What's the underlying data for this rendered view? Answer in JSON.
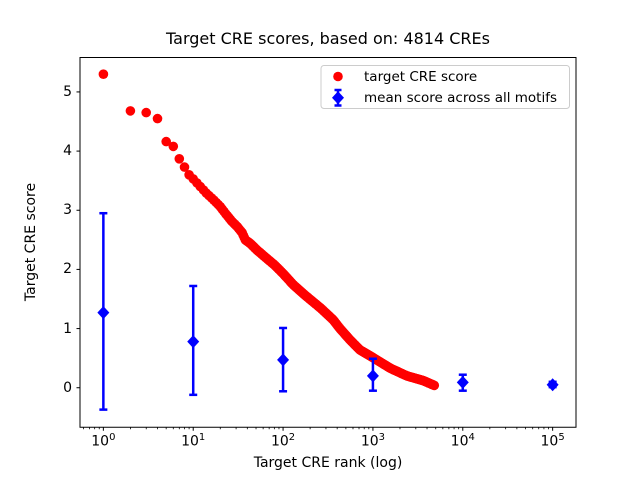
{
  "figure": {
    "title": "Target CRE scores, based on: 4814 CREs",
    "xlabel": "Target CRE rank (log)",
    "ylabel": "Target CRE score",
    "background": "#ffffff",
    "n_cres": 4814
  },
  "colors": {
    "target_series": "#ff0000",
    "mean_series": "#0000ff",
    "spine": "#000000",
    "legend_border": "#cccccc",
    "text": "#000000"
  },
  "legend": {
    "items": [
      {
        "label": "target CRE score",
        "marker": "circle",
        "color": "#ff0000"
      },
      {
        "label": "mean score across all motifs",
        "marker": "diamond-errorbar",
        "color": "#0000ff"
      }
    ],
    "position": "upper right"
  },
  "axes": {
    "x": {
      "scale": "log",
      "label": "Target CRE rank (log)",
      "tick_exponents": [
        0,
        1,
        2,
        3,
        4,
        5
      ],
      "log_range": [
        -0.26,
        5.26
      ],
      "minor_ticks": true
    },
    "y": {
      "scale": "linear",
      "label": "Target CRE score",
      "ticks": [
        0,
        1,
        2,
        3,
        4,
        5
      ],
      "range": [
        -0.668,
        5.582
      ],
      "grid": false
    }
  },
  "chart_data": {
    "type": "scatter",
    "title": "Target CRE scores, based on: 4814 CREs",
    "xlabel": "Target CRE rank (log)",
    "ylabel": "Target CRE score",
    "x_scale": "log",
    "xlim": [
      0.55,
      182000
    ],
    "ylim": [
      -0.668,
      5.582
    ],
    "series": [
      {
        "name": "target CRE score",
        "marker": "circle",
        "color": "#ff0000",
        "n_points": 4814,
        "anchor_points": [
          [
            1,
            5.3
          ],
          [
            2,
            4.68
          ],
          [
            3,
            4.65
          ],
          [
            4,
            4.55
          ],
          [
            5,
            4.16
          ],
          [
            6,
            4.08
          ],
          [
            7,
            3.87
          ],
          [
            8,
            3.73
          ],
          [
            9,
            3.6
          ],
          [
            10,
            3.53
          ],
          [
            12,
            3.4
          ],
          [
            14,
            3.29
          ],
          [
            17,
            3.17
          ],
          [
            20,
            3.06
          ],
          [
            23,
            2.94
          ],
          [
            27,
            2.81
          ],
          [
            31,
            2.72
          ],
          [
            35,
            2.62
          ],
          [
            38,
            2.5
          ],
          [
            43,
            2.44
          ],
          [
            51,
            2.33
          ],
          [
            63,
            2.21
          ],
          [
            81,
            2.07
          ],
          [
            100,
            1.93
          ],
          [
            130,
            1.74
          ],
          [
            180,
            1.55
          ],
          [
            260,
            1.35
          ],
          [
            360,
            1.15
          ],
          [
            430,
            1.0
          ],
          [
            555,
            0.81
          ],
          [
            716,
            0.64
          ],
          [
            1000,
            0.51
          ],
          [
            1560,
            0.33
          ],
          [
            2390,
            0.2
          ],
          [
            3640,
            0.12
          ],
          [
            4814,
            0.04
          ]
        ]
      },
      {
        "name": "mean score across all motifs",
        "marker": "diamond",
        "color": "#0000ff",
        "points": [
          [
            1,
            1.27
          ],
          [
            10,
            0.78
          ],
          [
            100,
            0.47
          ],
          [
            1000,
            0.2
          ],
          [
            10000,
            0.09
          ],
          [
            100000,
            0.05
          ]
        ],
        "error_low": [
          -0.37,
          -0.12,
          -0.06,
          -0.05,
          -0.05,
          0.01
        ],
        "error_high": [
          2.95,
          1.72,
          1.01,
          0.49,
          0.22,
          0.1
        ]
      }
    ]
  }
}
